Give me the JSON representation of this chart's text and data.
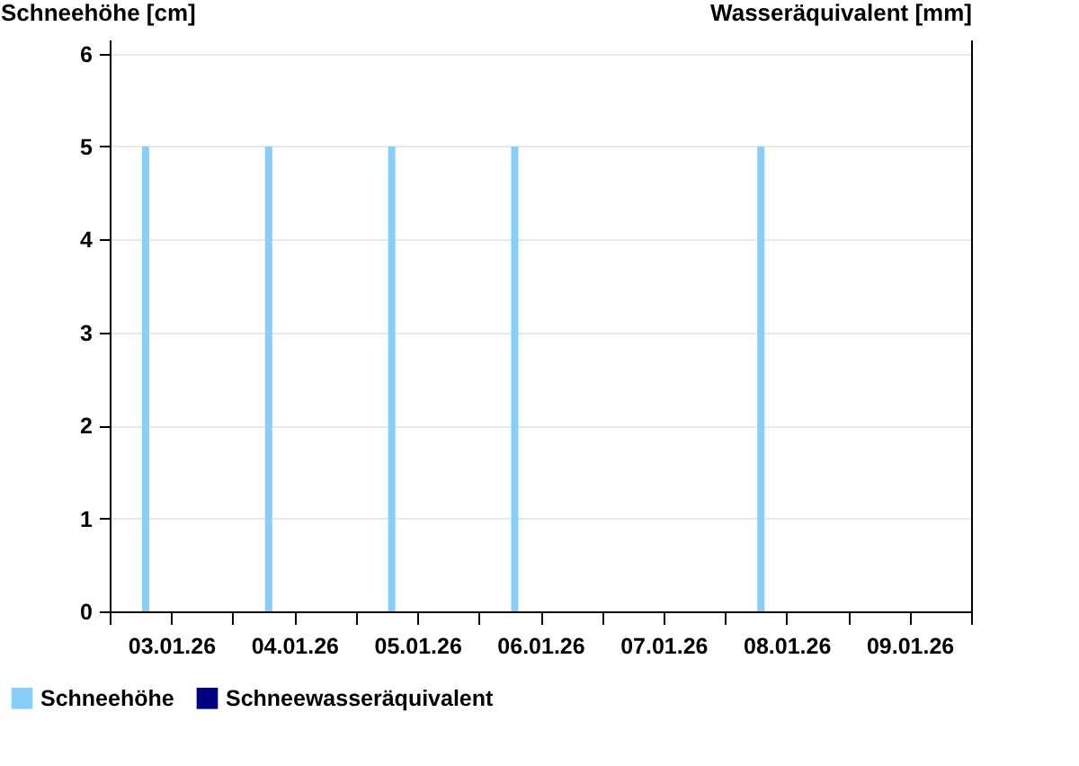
{
  "chart_data": {
    "type": "bar",
    "ylabel": "Schneehöhe [cm]",
    "y2label": "Wasseräquivalent [mm]",
    "x": [
      "--01-03T07:00",
      "--01-04T07:00",
      "--01-05T07:00",
      "--01-06T07:00",
      "--01-08T07:00"
    ],
    "series": [
      {
        "name": "Schneehöhe",
        "color": "#87cefa",
        "values": [
          5,
          5,
          5,
          5,
          5
        ]
      },
      {
        "name": "Schneewasseräquivalent",
        "color": "#000080",
        "axis": "y2",
        "values": [
          null,
          null,
          null,
          null,
          null
        ]
      }
    ],
    "xlim": [
      "--01-03",
      "--01-10"
    ],
    "xticks": [
      {
        "value": "--01-03",
        "label": null
      },
      {
        "value": "--01-03T12:00",
        "label": "03.01.26"
      },
      {
        "value": "--01-04",
        "label": null
      },
      {
        "value": "--01-04T12:00",
        "label": "04.01.26"
      },
      {
        "value": "--01-05",
        "label": null
      },
      {
        "value": "--01-05T12:00",
        "label": "05.01.26"
      },
      {
        "value": "--01-06",
        "label": null
      },
      {
        "value": "--01-06T12:00",
        "label": "06.01.26"
      },
      {
        "value": "--01-07",
        "label": null
      },
      {
        "value": "--01-07T12:00",
        "label": "07.01.26"
      },
      {
        "value": "--01-08",
        "label": null
      },
      {
        "value": "--01-08T12:00",
        "label": "08.01.26"
      },
      {
        "value": "--01-09",
        "label": null
      },
      {
        "value": "--01-09T12:00",
        "label": "09.01.26"
      },
      {
        "value": "--01-10",
        "label": null
      }
    ],
    "ylim": [
      0,
      6.15
    ],
    "yticks": [
      0,
      1,
      2,
      3,
      4,
      5,
      6
    ],
    "grid": "y",
    "legend": "bottom left"
  }
}
